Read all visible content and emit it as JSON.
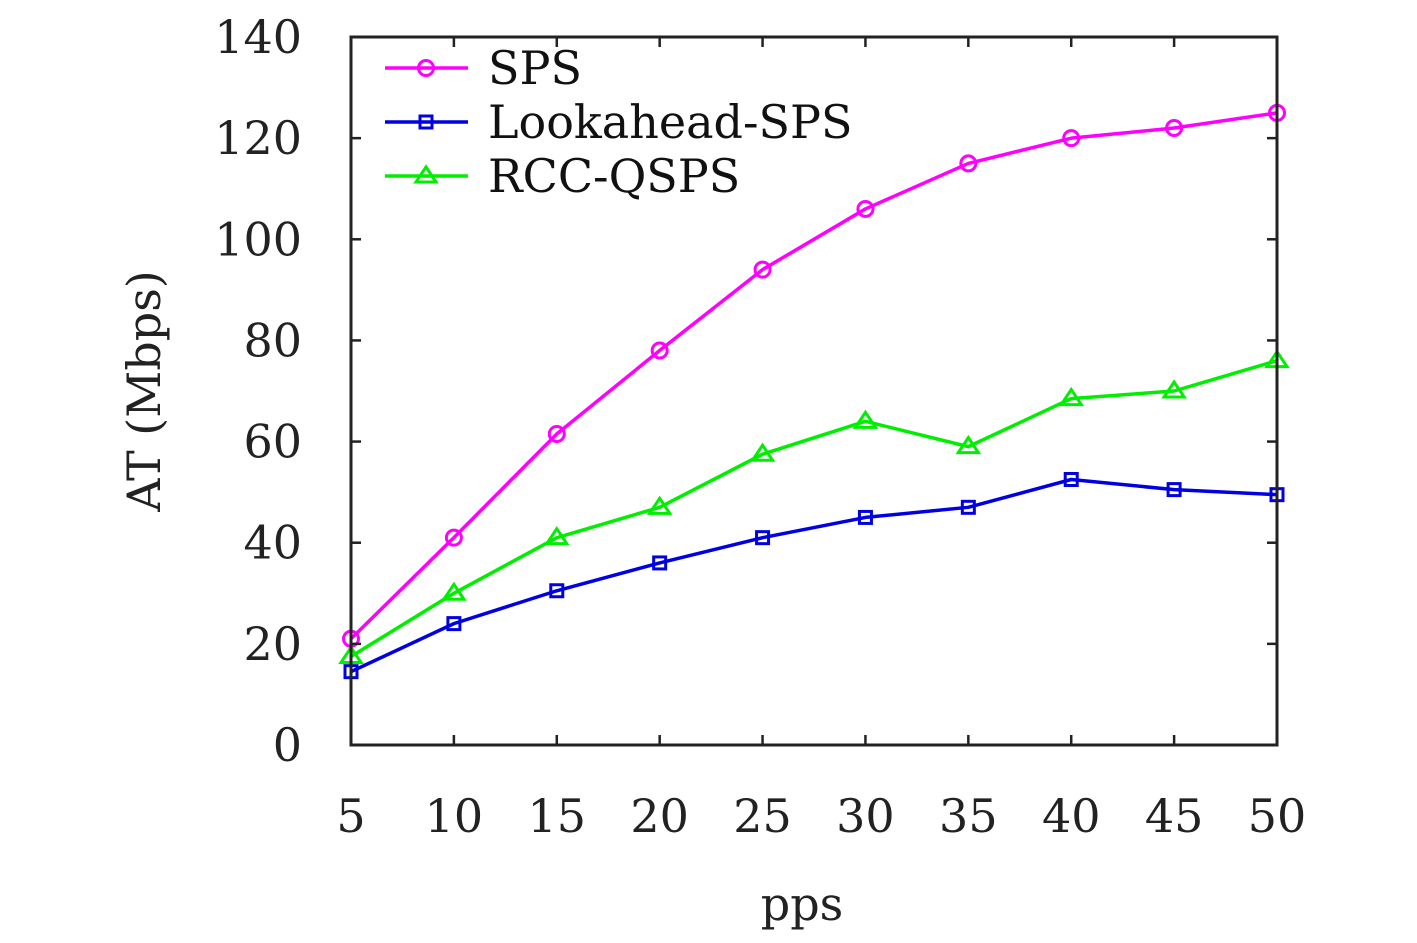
{
  "chart_data": {
    "type": "line",
    "title": "",
    "xlabel": "pps",
    "ylabel": "AT (Mbps)",
    "x": [
      5,
      10,
      15,
      20,
      25,
      30,
      35,
      40,
      45,
      50
    ],
    "xticks": [
      "5",
      "10",
      "15",
      "20",
      "25",
      "30",
      "35",
      "40",
      "45",
      "50"
    ],
    "yticks": [
      "0",
      "20",
      "40",
      "60",
      "80",
      "100",
      "120",
      "140"
    ],
    "xlim": [
      5,
      50
    ],
    "ylim": [
      0,
      140
    ],
    "grid": false,
    "legend": "top-left",
    "series": [
      {
        "name": "SPS",
        "color": "#ff00ff",
        "marker": "circle",
        "values": [
          21,
          41,
          61.5,
          78,
          94,
          106,
          115,
          120,
          122,
          125
        ]
      },
      {
        "name": "Lookahead-SPS",
        "color": "#0000e0",
        "marker": "square",
        "values": [
          14.5,
          24,
          30.5,
          36,
          41,
          45,
          47,
          52.5,
          50.5,
          49.5
        ]
      },
      {
        "name": "RCC-QSPS",
        "color": "#00ee00",
        "marker": "triangle",
        "values": [
          17.5,
          30,
          41,
          47,
          57.5,
          64,
          59,
          68.5,
          70,
          76
        ]
      }
    ]
  }
}
